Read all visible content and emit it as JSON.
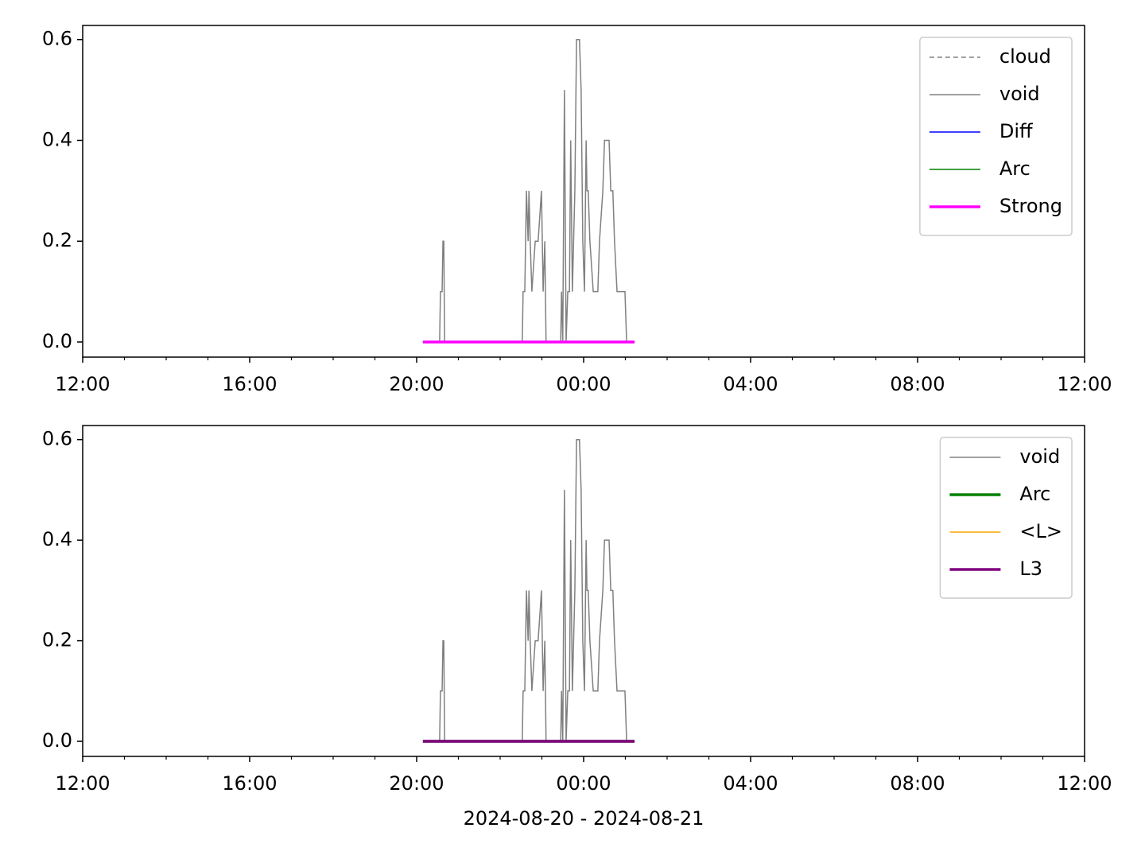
{
  "chart_data": [
    {
      "type": "line",
      "xlim": [
        12,
        36
      ],
      "xticks": [
        {
          "value": 12,
          "label": "12:00"
        },
        {
          "value": 16,
          "label": "16:00"
        },
        {
          "value": 20,
          "label": "20:00"
        },
        {
          "value": 24,
          "label": "00:00"
        },
        {
          "value": 28,
          "label": "04:00"
        },
        {
          "value": 32,
          "label": "08:00"
        },
        {
          "value": 36,
          "label": "12:00"
        }
      ],
      "xminorticks": [
        13,
        14,
        15,
        17,
        18,
        19,
        21,
        22,
        23,
        25,
        26,
        27,
        29,
        30,
        31,
        33,
        34,
        35
      ],
      "ylim": [
        -0.03,
        0.628
      ],
      "yticks": [
        {
          "value": 0,
          "label": "0.0"
        },
        0.2,
        0.4,
        0.6
      ],
      "legend": "upper right",
      "series": [
        {
          "name": "cloud",
          "color": "#808080",
          "linewidth": 1.5,
          "linestyle": "dashed",
          "x": [
            20.15,
            25.22
          ],
          "values": [
            0,
            0
          ]
        },
        {
          "name": "void",
          "color": "#808080",
          "linewidth": 1.5,
          "linestyle": "solid",
          "x": [
            20.15,
            20.55,
            20.57,
            20.61,
            20.63,
            20.65,
            20.67,
            22.53,
            22.55,
            22.59,
            22.63,
            22.67,
            22.69,
            22.72,
            22.76,
            22.84,
            22.91,
            22.99,
            23.03,
            23.07,
            23.1,
            23.45,
            23.47,
            23.5,
            23.54,
            23.58,
            23.62,
            23.66,
            23.69,
            23.73,
            23.79,
            23.83,
            23.9,
            23.94,
            23.98,
            24.02,
            24.06,
            24.08,
            24.11,
            24.15,
            24.23,
            24.34,
            24.38,
            24.46,
            24.5,
            24.61,
            24.65,
            24.7,
            24.74,
            24.8,
            24.99,
            25.03,
            25.22
          ],
          "values": [
            0,
            0,
            0.1,
            0.1,
            0.2,
            0.2,
            0,
            0,
            0.1,
            0.1,
            0.3,
            0.2,
            0.3,
            0.2,
            0.1,
            0.2,
            0.2,
            0.3,
            0.1,
            0.2,
            0,
            0,
            0.1,
            0,
            0.5,
            0,
            0.1,
            0.1,
            0.4,
            0.1,
            0.3,
            0.6,
            0.6,
            0.5,
            0.2,
            0.1,
            0.4,
            0.3,
            0.3,
            0.2,
            0.1,
            0.1,
            0.2,
            0.3,
            0.4,
            0.4,
            0.3,
            0.3,
            0.2,
            0.1,
            0.1,
            0,
            0
          ]
        },
        {
          "name": "Diff",
          "color": "#0000ff",
          "linewidth": 1.5,
          "linestyle": "solid",
          "x": [
            20.15,
            25.22
          ],
          "values": [
            0,
            0
          ]
        },
        {
          "name": "Arc",
          "color": "#008000",
          "linewidth": 1.5,
          "linestyle": "solid",
          "x": [
            20.15,
            25.22
          ],
          "values": [
            0,
            0
          ]
        },
        {
          "name": "Strong",
          "color": "#ff00ff",
          "linewidth": 3.5,
          "linestyle": "solid",
          "x": [
            20.15,
            25.22
          ],
          "values": [
            0,
            0
          ]
        }
      ]
    },
    {
      "type": "line",
      "xlabel": "2024-08-20 - 2024-08-21",
      "xlim": [
        12,
        36
      ],
      "xticks": [
        {
          "value": 12,
          "label": "12:00"
        },
        {
          "value": 16,
          "label": "16:00"
        },
        {
          "value": 20,
          "label": "20:00"
        },
        {
          "value": 24,
          "label": "00:00"
        },
        {
          "value": 28,
          "label": "04:00"
        },
        {
          "value": 32,
          "label": "08:00"
        },
        {
          "value": 36,
          "label": "12:00"
        }
      ],
      "xminorticks": [
        13,
        14,
        15,
        17,
        18,
        19,
        21,
        22,
        23,
        25,
        26,
        27,
        29,
        30,
        31,
        33,
        34,
        35
      ],
      "ylim": [
        -0.03,
        0.628
      ],
      "yticks": [
        {
          "value": 0,
          "label": "0.0"
        },
        0.2,
        0.4,
        0.6
      ],
      "legend": "upper right",
      "series": [
        {
          "name": "void",
          "color": "#808080",
          "linewidth": 1.5,
          "linestyle": "solid",
          "x": [
            20.15,
            20.55,
            20.57,
            20.61,
            20.63,
            20.65,
            20.67,
            22.53,
            22.55,
            22.59,
            22.63,
            22.67,
            22.69,
            22.72,
            22.76,
            22.84,
            22.91,
            22.99,
            23.03,
            23.07,
            23.1,
            23.45,
            23.47,
            23.5,
            23.54,
            23.58,
            23.62,
            23.66,
            23.69,
            23.73,
            23.79,
            23.83,
            23.9,
            23.94,
            23.98,
            24.02,
            24.06,
            24.08,
            24.11,
            24.15,
            24.23,
            24.34,
            24.38,
            24.46,
            24.5,
            24.61,
            24.65,
            24.7,
            24.74,
            24.8,
            24.99,
            25.03,
            25.22
          ],
          "values": [
            0,
            0,
            0.1,
            0.1,
            0.2,
            0.2,
            0,
            0,
            0.1,
            0.1,
            0.3,
            0.2,
            0.3,
            0.2,
            0.1,
            0.2,
            0.2,
            0.3,
            0.1,
            0.2,
            0,
            0,
            0.1,
            0,
            0.5,
            0,
            0.1,
            0.1,
            0.4,
            0.1,
            0.3,
            0.6,
            0.6,
            0.5,
            0.2,
            0.1,
            0.4,
            0.3,
            0.3,
            0.2,
            0.1,
            0.1,
            0.2,
            0.3,
            0.4,
            0.4,
            0.3,
            0.3,
            0.2,
            0.1,
            0.1,
            0,
            0
          ]
        },
        {
          "name": "Arc",
          "color": "#008000",
          "linewidth": 3.5,
          "linestyle": "solid",
          "x": [
            20.15,
            25.22
          ],
          "values": [
            0,
            0
          ]
        },
        {
          "name": "<L>",
          "color": "#ffa500",
          "linewidth": 1.5,
          "linestyle": "solid",
          "x": [
            20.15,
            25.22
          ],
          "values": [
            0,
            0
          ]
        },
        {
          "name": "L3",
          "color": "#800080",
          "linewidth": 3.5,
          "linestyle": "solid",
          "x": [
            20.15,
            25.22
          ],
          "values": [
            0,
            0
          ]
        }
      ]
    }
  ]
}
